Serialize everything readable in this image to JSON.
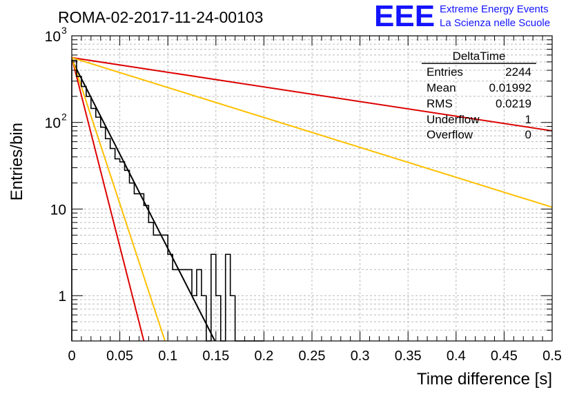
{
  "header": {
    "title": "ROMA-02-2017-11-24-00103",
    "logo_text": "EEE",
    "tagline_1": "Extreme Energy Events",
    "tagline_2": "La Scienza nelle Scuole"
  },
  "stats": {
    "title": "DeltaTime",
    "rows": [
      {
        "label": "Entries",
        "value": "2244"
      },
      {
        "label": "Mean",
        "value": "0.01992"
      },
      {
        "label": "RMS",
        "value": "0.0219"
      },
      {
        "label": "Underflow",
        "value": "1"
      },
      {
        "label": "Overflow",
        "value": "0"
      }
    ]
  },
  "chart_data": {
    "type": "line",
    "xlabel": "Time difference [s]",
    "ylabel": "Entries/bin",
    "xlim": [
      0,
      0.5
    ],
    "ylim": [
      0.3,
      1000
    ],
    "ylog": true,
    "grid": true,
    "x_ticks": [
      "0",
      "0.05",
      "0.1",
      "0.15",
      "0.2",
      "0.25",
      "0.3",
      "0.35",
      "0.4",
      "0.45",
      "0.5"
    ],
    "y_ticks": [
      {
        "value": 1,
        "label": "1"
      },
      {
        "value": 10,
        "label": "10"
      },
      {
        "value": 100,
        "label": "10",
        "sup": "2"
      },
      {
        "value": 1000,
        "label": "10",
        "sup": "3"
      }
    ],
    "histogram": {
      "bin_width": 0.005,
      "counts": [
        520,
        340,
        260,
        200,
        145,
        115,
        88,
        65,
        50,
        38,
        35,
        28,
        20,
        15,
        15,
        11,
        7,
        5,
        5,
        5,
        3,
        2,
        2,
        2,
        2,
        1,
        2,
        1,
        0,
        3,
        1,
        0,
        3,
        1,
        0,
        0,
        0,
        0,
        0,
        0
      ],
      "color": "#000000"
    },
    "lines": [
      {
        "x": [
          0,
          0.149
        ],
        "y": [
          530,
          0.3
        ],
        "color": "#000000"
      },
      {
        "x": [
          0,
          0.5
        ],
        "y": [
          560,
          80
        ],
        "color": "#dd0000"
      },
      {
        "x": [
          0,
          0.5
        ],
        "y": [
          560,
          10.5
        ],
        "color": "#ffc000"
      },
      {
        "x": [
          0,
          0.075
        ],
        "y": [
          560,
          0.3
        ],
        "color": "#dd0000"
      },
      {
        "x": [
          0,
          0.097
        ],
        "y": [
          560,
          0.3
        ],
        "color": "#ffc000"
      }
    ]
  }
}
